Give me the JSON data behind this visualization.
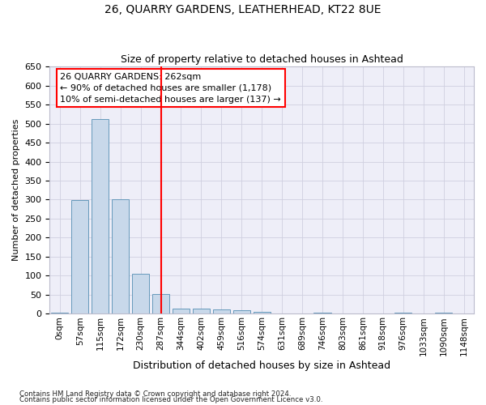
{
  "title": "26, QUARRY GARDENS, LEATHERHEAD, KT22 8UE",
  "subtitle": "Size of property relative to detached houses in Ashtead",
  "xlabel": "Distribution of detached houses by size in Ashtead",
  "ylabel": "Number of detached properties",
  "bar_labels": [
    "0sqm",
    "57sqm",
    "115sqm",
    "172sqm",
    "230sqm",
    "287sqm",
    "344sqm",
    "402sqm",
    "459sqm",
    "516sqm",
    "574sqm",
    "631sqm",
    "689sqm",
    "746sqm",
    "803sqm",
    "861sqm",
    "918sqm",
    "976sqm",
    "1033sqm",
    "1090sqm",
    "1148sqm"
  ],
  "bar_values": [
    2,
    298,
    512,
    302,
    106,
    53,
    13,
    13,
    12,
    9,
    6,
    0,
    0,
    3,
    0,
    0,
    0,
    2,
    0,
    2,
    0
  ],
  "bar_color": "#c8d8ea",
  "bar_edgecolor": "#6699bb",
  "ylim": [
    0,
    650
  ],
  "yticks": [
    0,
    50,
    100,
    150,
    200,
    250,
    300,
    350,
    400,
    450,
    500,
    550,
    600,
    650
  ],
  "vline_x": 5,
  "vline_color": "red",
  "annotation_line1": "26 QUARRY GARDENS: 262sqm",
  "annotation_line2": "← 90% of detached houses are smaller (1,178)",
  "annotation_line3": "10% of semi-detached houses are larger (137) →",
  "footer_line1": "Contains HM Land Registry data © Crown copyright and database right 2024.",
  "footer_line2": "Contains public sector information licensed under the Open Government Licence v3.0.",
  "grid_color": "#d0d0e0",
  "background_color": "#eeeef8"
}
